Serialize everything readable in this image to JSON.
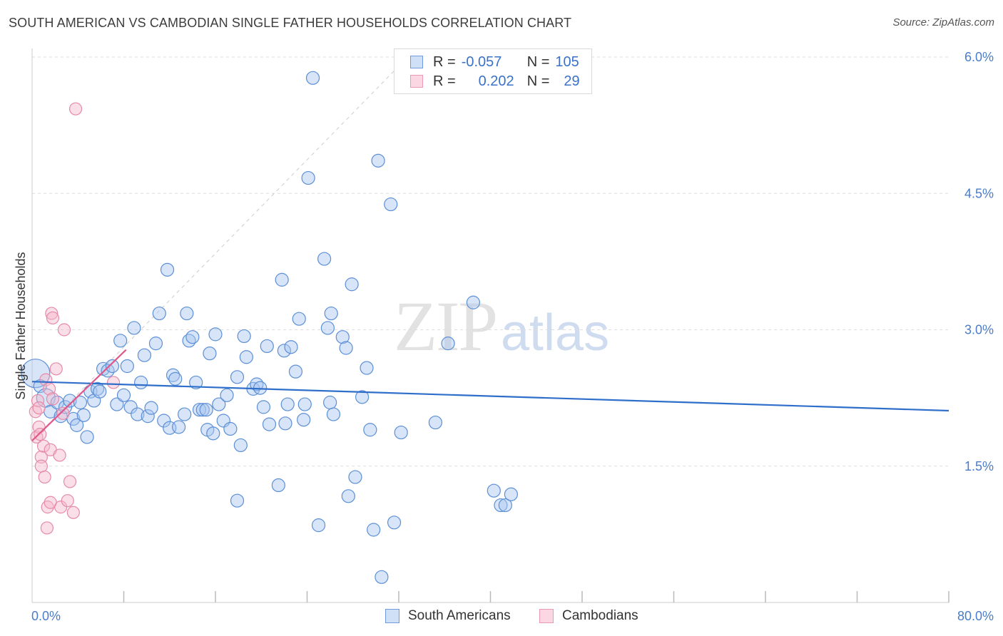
{
  "header": {
    "title": "SOUTH AMERICAN VS CAMBODIAN SINGLE FATHER HOUSEHOLDS CORRELATION CHART",
    "source": "Source: ZipAtlas.com"
  },
  "watermark": {
    "zip": "ZIP",
    "atlas": "atlas"
  },
  "legend": {
    "rows": [
      {
        "r_label": "R =",
        "r_value": "-0.057",
        "n_label": "N =",
        "n_value": "105",
        "color": "#a8c6f0"
      },
      {
        "r_label": "R =",
        "r_value": "0.202",
        "n_label": "N =",
        "n_value": "29",
        "color": "#f5b8cb"
      }
    ]
  },
  "bottom_legend": {
    "south_americans": "South Americans",
    "cambodians": "Cambodians"
  },
  "colors": {
    "blue_fill": "#a8c6f0",
    "blue_stroke": "#5b8fd6",
    "blue_line": "#2f6fcb",
    "pink_fill": "#f5b8cb",
    "pink_stroke": "#e58aa8",
    "pink_line": "#e0588a",
    "grid": "#dddddd",
    "tick_text": "#4a7cc9"
  },
  "chart_data": {
    "type": "scatter",
    "title": "SOUTH AMERICAN VS CAMBODIAN SINGLE FATHER HOUSEHOLDS CORRELATION CHART",
    "xlabel": "",
    "ylabel": "Single Father Households",
    "xlim": [
      0,
      80
    ],
    "ylim": [
      0,
      6.3
    ],
    "x_tick_labels": {
      "left": "0.0%",
      "right": "80.0%"
    },
    "y_ticks": [
      {
        "value": 1.5,
        "label": "1.5%"
      },
      {
        "value": 3.0,
        "label": "3.0%"
      },
      {
        "value": 4.5,
        "label": "4.5%"
      },
      {
        "value": 6.0,
        "label": "6.0%"
      }
    ],
    "series": [
      {
        "name": "South Americans",
        "r": -0.057,
        "n": 105,
        "trend": {
          "x0": 0,
          "y0": 2.43,
          "x1": 80,
          "y1": 2.11
        },
        "points": [
          [
            0.3,
            2.52
          ],
          [
            0.7,
            2.38
          ],
          [
            1.2,
            2.25
          ],
          [
            1.6,
            2.1
          ],
          [
            2.2,
            2.2
          ],
          [
            2.5,
            2.05
          ],
          [
            2.9,
            2.15
          ],
          [
            3.3,
            2.22
          ],
          [
            3.6,
            2.02
          ],
          [
            3.9,
            1.95
          ],
          [
            4.2,
            2.2
          ],
          [
            4.5,
            2.06
          ],
          [
            4.8,
            1.82
          ],
          [
            5.1,
            2.32
          ],
          [
            5.4,
            2.22
          ],
          [
            5.7,
            2.35
          ],
          [
            5.9,
            2.32
          ],
          [
            6.2,
            2.57
          ],
          [
            6.6,
            2.55
          ],
          [
            7.0,
            2.6
          ],
          [
            7.4,
            2.18
          ],
          [
            7.7,
            2.88
          ],
          [
            8.0,
            2.28
          ],
          [
            8.3,
            2.6
          ],
          [
            8.6,
            2.15
          ],
          [
            8.9,
            3.02
          ],
          [
            9.2,
            2.07
          ],
          [
            9.5,
            2.42
          ],
          [
            9.8,
            2.72
          ],
          [
            10.1,
            2.05
          ],
          [
            10.4,
            2.14
          ],
          [
            10.8,
            2.85
          ],
          [
            11.1,
            3.18
          ],
          [
            11.5,
            2.0
          ],
          [
            11.8,
            3.66
          ],
          [
            12.0,
            1.92
          ],
          [
            12.3,
            2.5
          ],
          [
            12.5,
            2.46
          ],
          [
            12.8,
            1.93
          ],
          [
            13.3,
            2.07
          ],
          [
            13.7,
            2.88
          ],
          [
            14.0,
            2.92
          ],
          [
            14.3,
            2.42
          ],
          [
            14.6,
            2.12
          ],
          [
            14.9,
            2.12
          ],
          [
            15.3,
            1.9
          ],
          [
            15.5,
            2.74
          ],
          [
            15.8,
            1.86
          ],
          [
            16.0,
            2.95
          ],
          [
            16.3,
            2.18
          ],
          [
            16.7,
            2.0
          ],
          [
            17.0,
            2.28
          ],
          [
            17.3,
            1.91
          ],
          [
            17.9,
            2.48
          ],
          [
            18.2,
            1.73
          ],
          [
            18.5,
            2.93
          ],
          [
            18.7,
            2.7
          ],
          [
            19.3,
            2.35
          ],
          [
            19.6,
            2.4
          ],
          [
            19.9,
            2.36
          ],
          [
            20.2,
            2.15
          ],
          [
            20.5,
            2.82
          ],
          [
            20.7,
            1.96
          ],
          [
            21.5,
            1.29
          ],
          [
            21.8,
            3.55
          ],
          [
            22.0,
            2.77
          ],
          [
            22.3,
            2.18
          ],
          [
            22.6,
            2.81
          ],
          [
            23.0,
            2.54
          ],
          [
            23.3,
            3.12
          ],
          [
            23.7,
            2.01
          ],
          [
            24.1,
            4.67
          ],
          [
            24.5,
            5.77
          ],
          [
            25.0,
            0.85
          ],
          [
            25.5,
            3.78
          ],
          [
            25.8,
            3.02
          ],
          [
            26.0,
            2.2
          ],
          [
            26.1,
            3.18
          ],
          [
            26.3,
            2.07
          ],
          [
            27.1,
            2.92
          ],
          [
            27.4,
            2.8
          ],
          [
            27.6,
            1.17
          ],
          [
            27.9,
            3.5
          ],
          [
            28.2,
            1.38
          ],
          [
            28.8,
            2.26
          ],
          [
            29.2,
            2.58
          ],
          [
            29.5,
            1.9
          ],
          [
            29.8,
            0.8
          ],
          [
            30.2,
            4.86
          ],
          [
            30.5,
            0.28
          ],
          [
            31.3,
            4.38
          ],
          [
            31.6,
            0.88
          ],
          [
            32.2,
            1.87
          ],
          [
            35.2,
            1.98
          ],
          [
            36.3,
            2.85
          ],
          [
            38.5,
            3.3
          ],
          [
            40.3,
            1.23
          ],
          [
            40.9,
            1.07
          ],
          [
            41.3,
            1.07
          ],
          [
            41.8,
            1.19
          ],
          [
            15.2,
            2.12
          ],
          [
            23.8,
            2.18
          ],
          [
            22.1,
            1.97
          ],
          [
            13.5,
            3.18
          ],
          [
            17.9,
            1.12
          ]
        ]
      },
      {
        "name": "Cambodians",
        "r": 0.202,
        "n": 29,
        "trend": {
          "x0": 0,
          "y0": 1.78,
          "x1": 8.2,
          "y1": 2.78
        },
        "points": [
          [
            0.3,
            2.1
          ],
          [
            0.4,
            1.82
          ],
          [
            0.5,
            2.22
          ],
          [
            0.6,
            1.93
          ],
          [
            0.7,
            1.85
          ],
          [
            0.8,
            1.6
          ],
          [
            0.8,
            1.5
          ],
          [
            1.0,
            1.72
          ],
          [
            1.1,
            1.38
          ],
          [
            1.2,
            2.45
          ],
          [
            1.3,
            0.82
          ],
          [
            1.35,
            1.05
          ],
          [
            1.5,
            2.35
          ],
          [
            1.6,
            1.68
          ],
          [
            1.6,
            1.1
          ],
          [
            1.7,
            3.18
          ],
          [
            1.8,
            3.13
          ],
          [
            2.1,
            2.57
          ],
          [
            2.4,
            1.62
          ],
          [
            2.5,
            1.05
          ],
          [
            2.7,
            2.08
          ],
          [
            2.8,
            3.0
          ],
          [
            3.1,
            1.12
          ],
          [
            3.3,
            1.33
          ],
          [
            3.6,
            0.99
          ],
          [
            3.8,
            5.43
          ],
          [
            7.1,
            2.42
          ],
          [
            1.8,
            2.24
          ],
          [
            0.6,
            2.14
          ]
        ]
      }
    ]
  }
}
